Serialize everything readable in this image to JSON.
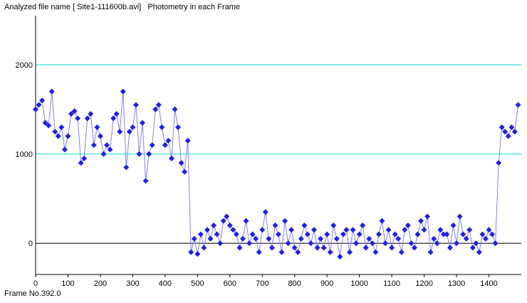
{
  "header": {
    "file_label": "Analyzed file name [ Site1-111600b.avi]",
    "title": "Photometry in each Frame"
  },
  "footer": {
    "frame_label": "Frame No.392.0"
  },
  "colors": {
    "series": "#1f1fe6",
    "series_line": "#8080f0",
    "grid": "#00d8d8",
    "zero_line": "#000000",
    "axis": "#000000"
  },
  "chart_data": {
    "type": "line",
    "title": "Photometry in each Frame",
    "xlabel": "",
    "ylabel": "",
    "xlim": [
      0,
      1500
    ],
    "ylim": [
      -350,
      2550
    ],
    "x_ticks": [
      0,
      100,
      200,
      300,
      400,
      500,
      600,
      700,
      800,
      900,
      1000,
      1100,
      1200,
      1300,
      1400
    ],
    "y_ticks": [
      0,
      1000,
      2000
    ],
    "gridlines_y": [
      1000,
      2000
    ],
    "marker": "diamond",
    "series": [
      {
        "x": [
          0,
          10,
          20,
          30,
          40,
          50,
          60,
          70,
          80,
          90,
          100,
          110,
          120,
          130,
          140,
          150,
          160,
          170,
          180,
          190,
          200,
          210,
          220,
          230,
          240,
          250,
          260,
          270,
          280,
          290,
          300,
          310,
          320,
          330,
          340,
          350,
          360,
          370,
          380,
          390,
          400,
          410,
          420,
          430,
          440,
          450,
          460,
          470,
          480,
          490,
          500,
          510,
          520,
          530,
          540,
          550,
          560,
          570,
          580,
          590,
          600,
          610,
          620,
          630,
          640,
          650,
          660,
          670,
          680,
          690,
          700,
          710,
          720,
          730,
          740,
          750,
          760,
          770,
          780,
          790,
          800,
          810,
          820,
          830,
          840,
          850,
          860,
          870,
          880,
          890,
          900,
          910,
          920,
          930,
          940,
          950,
          960,
          970,
          980,
          990,
          1000,
          1010,
          1020,
          1030,
          1040,
          1050,
          1060,
          1070,
          1080,
          1090,
          1100,
          1110,
          1120,
          1130,
          1140,
          1150,
          1160,
          1170,
          1180,
          1190,
          1200,
          1210,
          1220,
          1230,
          1240,
          1250,
          1260,
          1270,
          1280,
          1290,
          1300,
          1310,
          1320,
          1330,
          1340,
          1350,
          1360,
          1370,
          1380,
          1390,
          1400,
          1410,
          1420,
          1430,
          1440,
          1450,
          1460,
          1470,
          1480,
          1490
        ],
        "values": [
          1500,
          1550,
          1600,
          1350,
          1320,
          1700,
          1250,
          1200,
          1300,
          1050,
          1200,
          1450,
          1480,
          1400,
          900,
          950,
          1400,
          1450,
          1100,
          1300,
          1200,
          1000,
          1100,
          1050,
          1400,
          1450,
          1250,
          1700,
          850,
          1250,
          1300,
          1550,
          1000,
          1350,
          700,
          1000,
          1100,
          1500,
          1550,
          1300,
          1100,
          1150,
          950,
          1500,
          1300,
          900,
          800,
          1150,
          -100,
          50,
          -120,
          100,
          -50,
          150,
          50,
          200,
          100,
          0,
          250,
          300,
          200,
          150,
          100,
          -50,
          50,
          250,
          0,
          100,
          50,
          -100,
          150,
          350,
          50,
          -50,
          200,
          100,
          -100,
          250,
          0,
          150,
          -50,
          -100,
          50,
          200,
          100,
          0,
          150,
          -50,
          50,
          -50,
          100,
          -100,
          200,
          50,
          -150,
          100,
          150,
          -100,
          150,
          0,
          100,
          200,
          -50,
          50,
          0,
          -100,
          100,
          250,
          0,
          150,
          -50,
          100,
          50,
          -100,
          150,
          200,
          0,
          -50,
          100,
          250,
          150,
          300,
          -100,
          50,
          0,
          150,
          100,
          100,
          -50,
          200,
          0,
          300,
          100,
          50,
          150,
          -50,
          0,
          -100,
          100,
          50,
          150,
          100,
          0,
          900,
          1300,
          1250,
          1200,
          1300,
          1250,
          1550
        ]
      }
    ]
  }
}
